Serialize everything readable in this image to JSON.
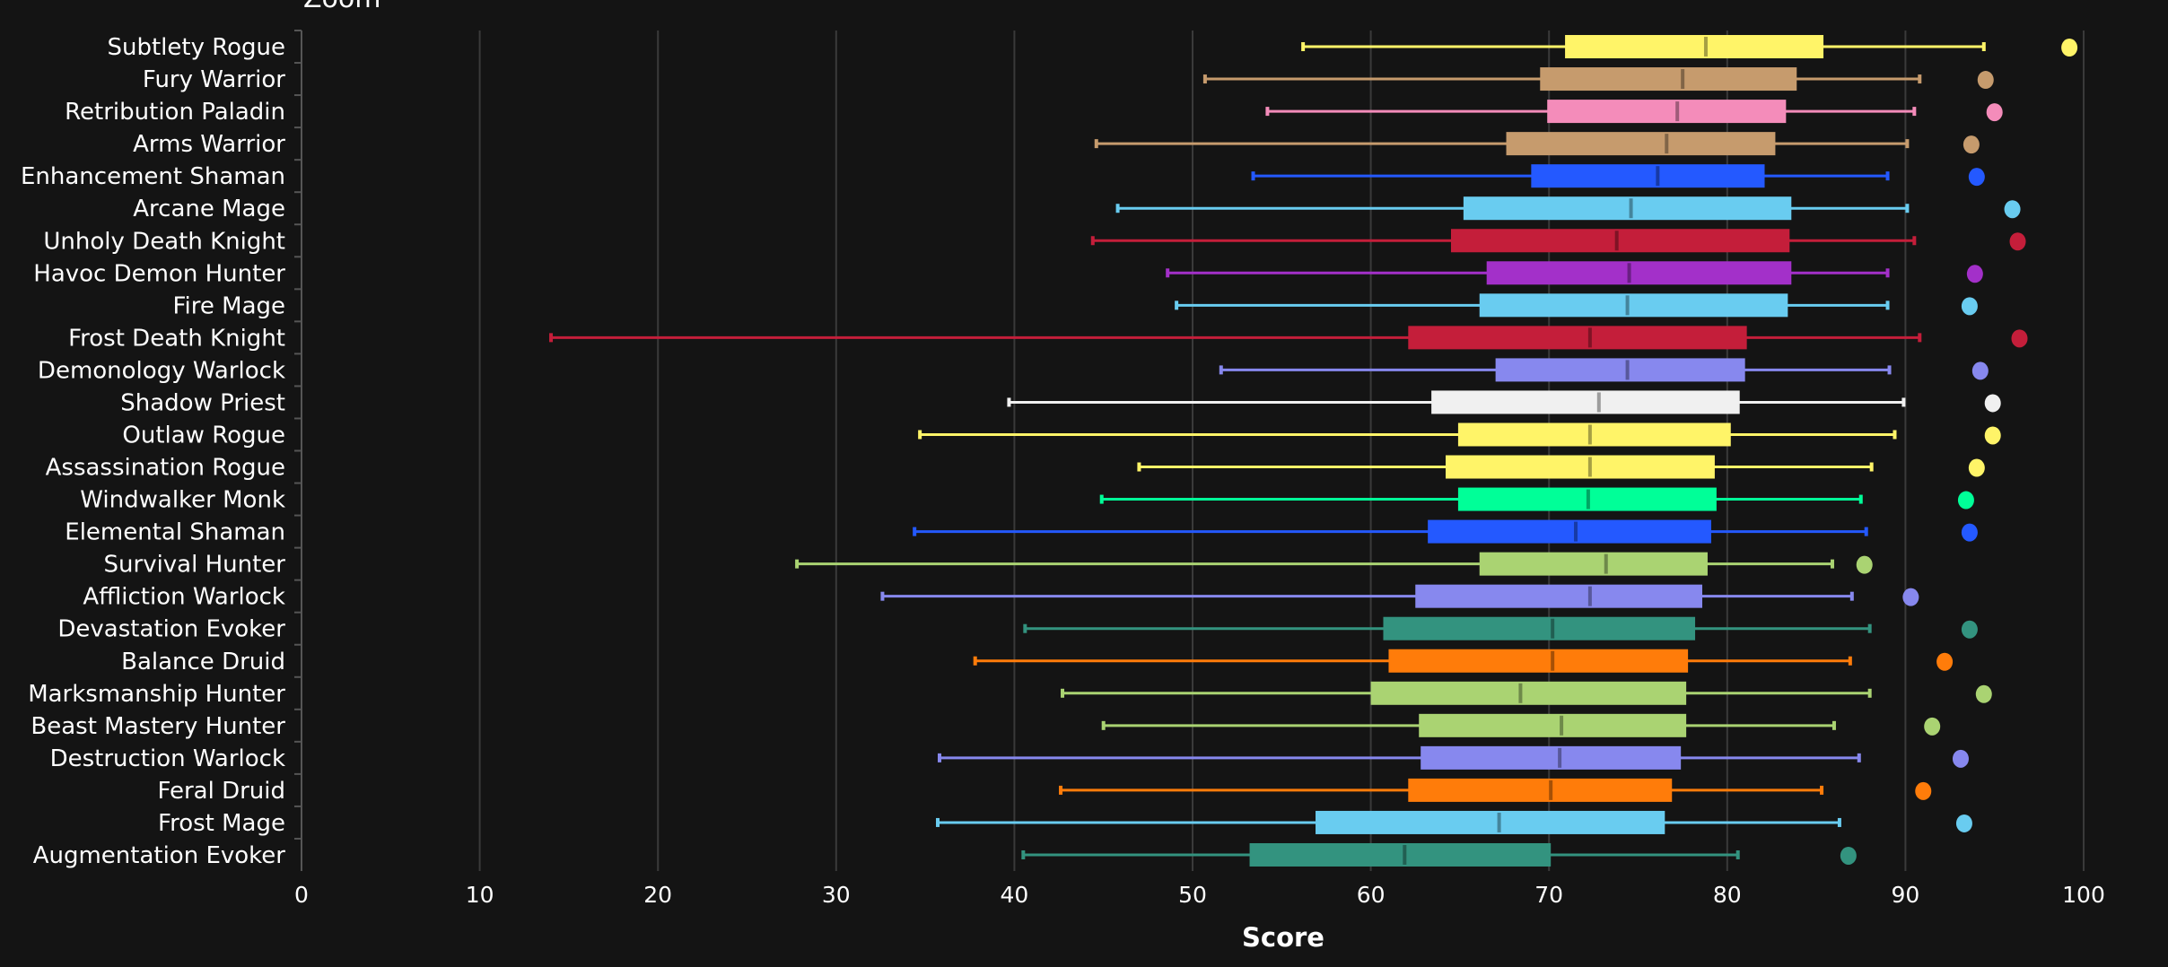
{
  "zoom_label": "Zoom",
  "chart_data": {
    "type": "boxplot",
    "title": "",
    "xlabel": "Score",
    "ylabel": "",
    "xlim": [
      0,
      100
    ],
    "xticks": [
      0,
      10,
      20,
      30,
      40,
      50,
      60,
      70,
      80,
      90,
      100
    ],
    "grid": "vertical",
    "legend": "none",
    "series": [
      {
        "name": "Subtlety Rogue",
        "color": "#FFF468",
        "min": 56.2,
        "q1": 70.9,
        "median": 78.8,
        "q3": 85.4,
        "max": 94.4,
        "outlier": 99.2
      },
      {
        "name": "Fury Warrior",
        "color": "#C69B6D",
        "min": 50.7,
        "q1": 69.5,
        "median": 77.5,
        "q3": 83.9,
        "max": 90.8,
        "outlier": 94.5
      },
      {
        "name": "Retribution Paladin",
        "color": "#F48CBA",
        "min": 54.2,
        "q1": 69.9,
        "median": 77.2,
        "q3": 83.3,
        "max": 90.5,
        "outlier": 95.0
      },
      {
        "name": "Arms Warrior",
        "color": "#C69B6D",
        "min": 44.6,
        "q1": 67.6,
        "median": 76.6,
        "q3": 82.7,
        "max": 90.1,
        "outlier": 93.7
      },
      {
        "name": "Enhancement Shaman",
        "color": "#2459FF",
        "min": 53.4,
        "q1": 69.0,
        "median": 76.1,
        "q3": 82.1,
        "max": 89.0,
        "outlier": 94.0
      },
      {
        "name": "Arcane Mage",
        "color": "#69CCF0",
        "min": 45.8,
        "q1": 65.2,
        "median": 74.6,
        "q3": 83.6,
        "max": 90.1,
        "outlier": 96.0
      },
      {
        "name": "Unholy Death Knight",
        "color": "#C41E3A",
        "min": 44.4,
        "q1": 64.5,
        "median": 73.8,
        "q3": 83.5,
        "max": 90.5,
        "outlier": 96.3
      },
      {
        "name": "Havoc Demon Hunter",
        "color": "#A330C9",
        "min": 48.6,
        "q1": 66.5,
        "median": 74.5,
        "q3": 83.6,
        "max": 89.0,
        "outlier": 93.9
      },
      {
        "name": "Fire Mage",
        "color": "#69CCF0",
        "min": 49.1,
        "q1": 66.1,
        "median": 74.4,
        "q3": 83.4,
        "max": 89.0,
        "outlier": 93.6
      },
      {
        "name": "Frost Death Knight",
        "color": "#C41E3A",
        "min": 14.0,
        "q1": 62.1,
        "median": 72.3,
        "q3": 81.1,
        "max": 90.8,
        "outlier": 96.4
      },
      {
        "name": "Demonology Warlock",
        "color": "#8788EE",
        "min": 51.6,
        "q1": 67.0,
        "median": 74.4,
        "q3": 81.0,
        "max": 89.1,
        "outlier": 94.2
      },
      {
        "name": "Shadow Priest",
        "color": "#F0F0F0",
        "min": 39.7,
        "q1": 63.4,
        "median": 72.8,
        "q3": 80.7,
        "max": 89.9,
        "outlier": 94.9
      },
      {
        "name": "Outlaw Rogue",
        "color": "#FFF468",
        "min": 34.7,
        "q1": 64.9,
        "median": 72.3,
        "q3": 80.2,
        "max": 89.4,
        "outlier": 94.9
      },
      {
        "name": "Assassination Rogue",
        "color": "#FFF468",
        "min": 47.0,
        "q1": 64.2,
        "median": 72.3,
        "q3": 79.3,
        "max": 88.1,
        "outlier": 94.0
      },
      {
        "name": "Windwalker Monk",
        "color": "#00FF98",
        "min": 44.9,
        "q1": 64.9,
        "median": 72.2,
        "q3": 79.4,
        "max": 87.5,
        "outlier": 93.4
      },
      {
        "name": "Elemental Shaman",
        "color": "#2459FF",
        "min": 34.4,
        "q1": 63.2,
        "median": 71.5,
        "q3": 79.1,
        "max": 87.8,
        "outlier": 93.6
      },
      {
        "name": "Survival Hunter",
        "color": "#AAD372",
        "min": 27.8,
        "q1": 66.1,
        "median": 73.2,
        "q3": 78.9,
        "max": 85.9,
        "outlier": 87.7
      },
      {
        "name": "Affliction Warlock",
        "color": "#8788EE",
        "min": 32.6,
        "q1": 62.5,
        "median": 72.3,
        "q3": 78.6,
        "max": 87.0,
        "outlier": 90.3
      },
      {
        "name": "Devastation Evoker",
        "color": "#33937F",
        "min": 40.6,
        "q1": 60.7,
        "median": 70.2,
        "q3": 78.2,
        "max": 88.0,
        "outlier": 93.6
      },
      {
        "name": "Balance Druid",
        "color": "#FF7C0A",
        "min": 37.8,
        "q1": 61.0,
        "median": 70.2,
        "q3": 77.8,
        "max": 86.9,
        "outlier": 92.2
      },
      {
        "name": "Marksmanship Hunter",
        "color": "#AAD372",
        "min": 42.7,
        "q1": 60.0,
        "median": 68.4,
        "q3": 77.7,
        "max": 88.0,
        "outlier": 94.4
      },
      {
        "name": "Beast Mastery Hunter",
        "color": "#AAD372",
        "min": 45.0,
        "q1": 62.7,
        "median": 70.7,
        "q3": 77.7,
        "max": 86.0,
        "outlier": 91.5
      },
      {
        "name": "Destruction Warlock",
        "color": "#8788EE",
        "min": 35.8,
        "q1": 62.8,
        "median": 70.6,
        "q3": 77.4,
        "max": 87.4,
        "outlier": 93.1
      },
      {
        "name": "Feral Druid",
        "color": "#FF7C0A",
        "min": 42.6,
        "q1": 62.1,
        "median": 70.1,
        "q3": 76.9,
        "max": 85.3,
        "outlier": 91.0
      },
      {
        "name": "Frost Mage",
        "color": "#69CCF0",
        "min": 35.7,
        "q1": 56.9,
        "median": 67.2,
        "q3": 76.5,
        "max": 86.3,
        "outlier": 93.3
      },
      {
        "name": "Augmentation Evoker",
        "color": "#33937F",
        "min": 40.5,
        "q1": 53.2,
        "median": 61.9,
        "q3": 70.1,
        "max": 80.6,
        "outlier": 86.8
      }
    ]
  }
}
